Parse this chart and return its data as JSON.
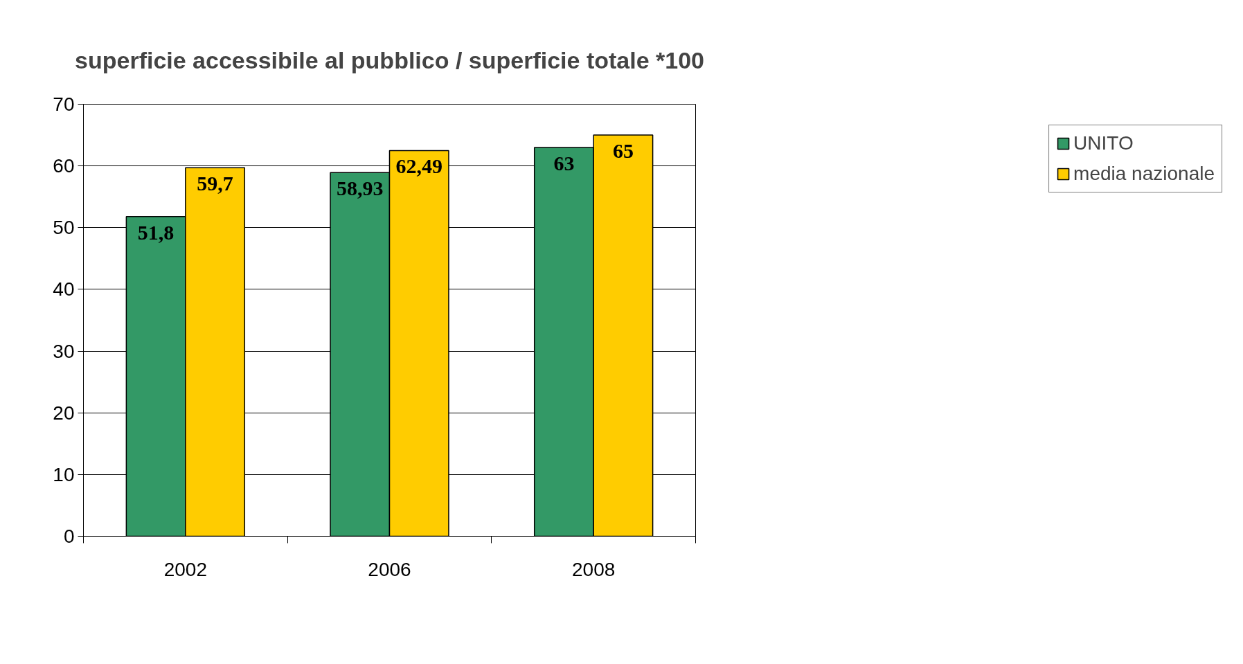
{
  "chart_data": {
    "type": "bar",
    "title": "superficie accessibile al pubblico / superficie totale *100",
    "categories": [
      "2002",
      "2006",
      "2008"
    ],
    "series": [
      {
        "name": "UNITO",
        "color": "#339966",
        "values": [
          51.8,
          58.93,
          63
        ],
        "value_labels": [
          "51,8",
          "58,93",
          "63"
        ]
      },
      {
        "name": "media nazionale",
        "color": "#ffcc00",
        "values": [
          59.7,
          62.49,
          65
        ],
        "value_labels": [
          "59,7",
          "62,49",
          "65"
        ]
      }
    ],
    "ylim": [
      0,
      70
    ],
    "yticks": [
      0,
      10,
      20,
      30,
      40,
      50,
      60,
      70
    ],
    "grid": "y",
    "legend": "right"
  }
}
